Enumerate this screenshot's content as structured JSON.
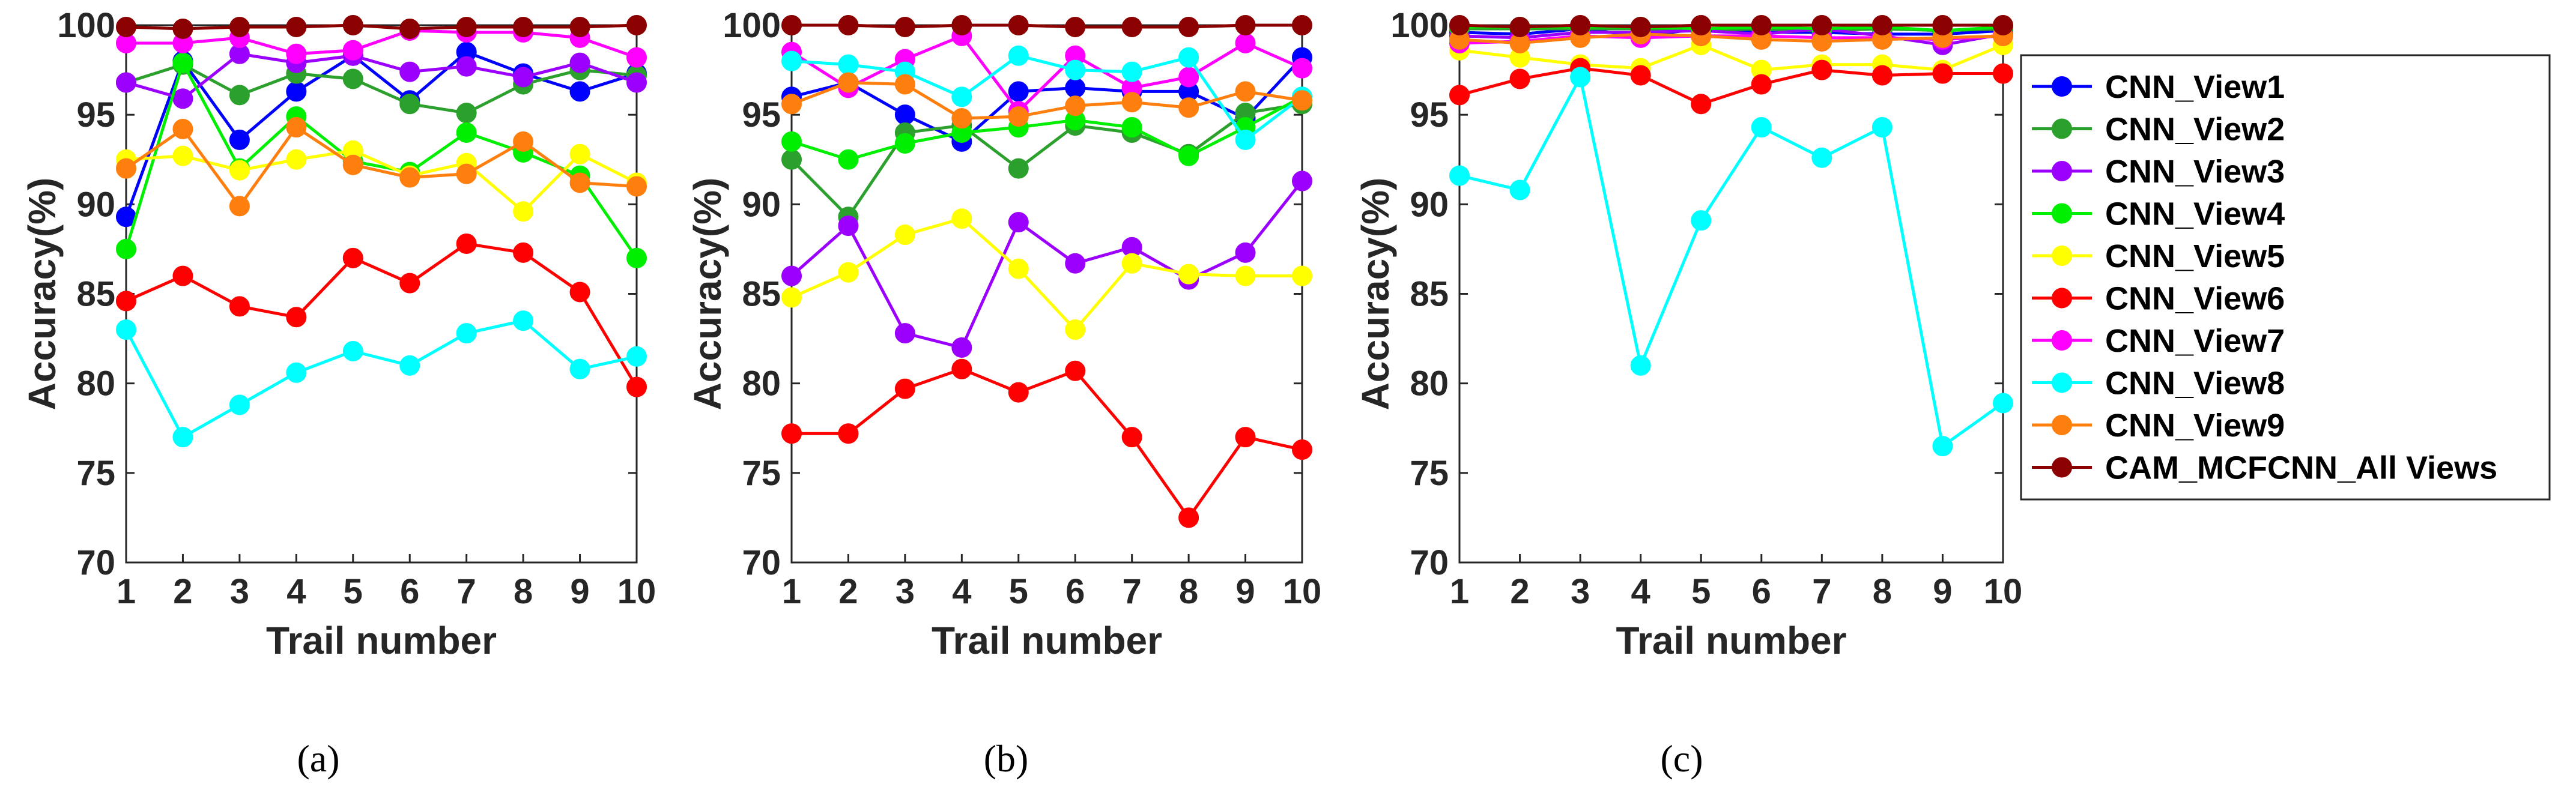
{
  "chart_data": [
    {
      "type": "line",
      "caption": "(a)",
      "xlabel": "Trail number",
      "ylabel": "Accuracy(%)",
      "x": [
        1,
        2,
        3,
        4,
        5,
        6,
        7,
        8,
        9,
        10
      ],
      "xticks": [
        "1",
        "2",
        "3",
        "4",
        "5",
        "6",
        "7",
        "8",
        "9",
        "10"
      ],
      "yticks": [
        "70",
        "75",
        "80",
        "85",
        "90",
        "95",
        "100"
      ],
      "ylim": [
        70,
        100
      ],
      "series": [
        {
          "name": "CNN_View1",
          "color": "#0000ff",
          "values": [
            89.3,
            98.0,
            93.6,
            96.3,
            98.3,
            95.8,
            98.5,
            97.3,
            96.3,
            97.3
          ]
        },
        {
          "name": "CNN_View2",
          "color": "#2ca02c",
          "values": [
            96.8,
            97.8,
            96.1,
            97.3,
            97.0,
            95.6,
            95.1,
            96.7,
            97.5,
            97.2
          ]
        },
        {
          "name": "CNN_View3",
          "color": "#9b00ff",
          "values": [
            96.8,
            95.9,
            98.4,
            97.9,
            98.3,
            97.4,
            97.7,
            97.1,
            97.9,
            96.8
          ]
        },
        {
          "name": "CNN_View4",
          "color": "#00ee00",
          "values": [
            87.5,
            97.9,
            92.0,
            94.9,
            92.4,
            91.8,
            94.0,
            92.9,
            91.6,
            87.0
          ]
        },
        {
          "name": "CNN_View5",
          "color": "#ffff00",
          "values": [
            92.5,
            92.7,
            91.9,
            92.5,
            93.0,
            91.6,
            92.3,
            89.6,
            92.8,
            91.2
          ]
        },
        {
          "name": "CNN_View6",
          "color": "#ff0000",
          "values": [
            84.6,
            86.0,
            84.3,
            83.7,
            87.0,
            85.6,
            87.8,
            87.3,
            85.1,
            79.8
          ]
        },
        {
          "name": "CNN_View7",
          "color": "#ff00ff",
          "values": [
            99.0,
            99.0,
            99.3,
            98.4,
            98.6,
            99.7,
            99.6,
            99.6,
            99.3,
            98.2
          ]
        },
        {
          "name": "CNN_View8",
          "color": "#00ffff",
          "values": [
            83.0,
            77.0,
            78.8,
            80.6,
            81.8,
            81.0,
            82.8,
            83.5,
            80.8,
            81.5
          ]
        },
        {
          "name": "CNN_View9",
          "color": "#ff7f0e",
          "values": [
            92.0,
            94.2,
            89.9,
            94.3,
            92.2,
            91.5,
            91.7,
            93.5,
            91.2,
            91.0
          ]
        },
        {
          "name": "CAM_MCFCNN_All Views",
          "color": "#8b0000",
          "values": [
            99.9,
            99.8,
            99.9,
            99.9,
            100.0,
            99.8,
            99.9,
            99.9,
            99.9,
            100.0
          ]
        }
      ]
    },
    {
      "type": "line",
      "caption": "(b)",
      "xlabel": "Trail number",
      "ylabel": "Accuracy(%)",
      "x": [
        1,
        2,
        3,
        4,
        5,
        6,
        7,
        8,
        9,
        10
      ],
      "xticks": [
        "1",
        "2",
        "3",
        "4",
        "5",
        "6",
        "7",
        "8",
        "9",
        "10"
      ],
      "yticks": [
        "70",
        "75",
        "80",
        "85",
        "90",
        "95",
        "100"
      ],
      "ylim": [
        70,
        100
      ],
      "series": [
        {
          "name": "CNN_View1",
          "color": "#0000ff",
          "values": [
            96.0,
            96.8,
            95.0,
            93.5,
            96.3,
            96.5,
            96.3,
            96.3,
            94.8,
            98.2
          ]
        },
        {
          "name": "CNN_View2",
          "color": "#2ca02c",
          "values": [
            92.5,
            89.3,
            94.0,
            94.4,
            92.0,
            94.4,
            94.0,
            92.8,
            95.1,
            95.6
          ]
        },
        {
          "name": "CNN_View3",
          "color": "#9b00ff",
          "values": [
            86.0,
            88.8,
            82.8,
            82.0,
            89.0,
            86.7,
            87.6,
            85.8,
            87.3,
            91.3
          ]
        },
        {
          "name": "CNN_View4",
          "color": "#00ee00",
          "values": [
            93.5,
            92.5,
            93.4,
            94.0,
            94.3,
            94.7,
            94.3,
            92.7,
            94.3,
            96.0
          ]
        },
        {
          "name": "CNN_View5",
          "color": "#ffff00",
          "values": [
            84.8,
            86.2,
            88.3,
            89.2,
            86.4,
            83.0,
            86.7,
            86.1,
            86.0,
            86.0
          ]
        },
        {
          "name": "CNN_View6",
          "color": "#ff0000",
          "values": [
            77.2,
            77.2,
            79.7,
            80.8,
            79.5,
            80.7,
            77.0,
            72.5,
            77.0,
            76.3
          ]
        },
        {
          "name": "CNN_View7",
          "color": "#ff00ff",
          "values": [
            98.5,
            96.5,
            98.1,
            99.4,
            95.2,
            98.3,
            96.5,
            97.1,
            99.0,
            97.6
          ]
        },
        {
          "name": "CNN_View8",
          "color": "#00ffff",
          "values": [
            98.0,
            97.8,
            97.4,
            96.0,
            98.3,
            97.5,
            97.4,
            98.2,
            93.6,
            96.0
          ]
        },
        {
          "name": "CNN_View9",
          "color": "#ff7f0e",
          "values": [
            95.6,
            96.8,
            96.7,
            94.8,
            94.9,
            95.5,
            95.7,
            95.4,
            96.3,
            95.8
          ]
        },
        {
          "name": "CAM_MCFCNN_All Views",
          "color": "#8b0000",
          "values": [
            100.0,
            100.0,
            99.9,
            100.0,
            100.0,
            99.9,
            99.9,
            99.9,
            100.0,
            100.0
          ]
        }
      ]
    },
    {
      "type": "line",
      "caption": "(c)",
      "xlabel": "Trail number",
      "ylabel": "Accuracy(%)",
      "x": [
        1,
        2,
        3,
        4,
        5,
        6,
        7,
        8,
        9,
        10
      ],
      "xticks": [
        "1",
        "2",
        "3",
        "4",
        "5",
        "6",
        "7",
        "8",
        "9",
        "10"
      ],
      "yticks": [
        "70",
        "75",
        "80",
        "85",
        "90",
        "95",
        "100"
      ],
      "ylim": [
        70,
        100
      ],
      "series": [
        {
          "name": "CNN_View1",
          "color": "#0000ff",
          "values": [
            99.6,
            99.5,
            99.8,
            99.4,
            99.8,
            99.6,
            99.6,
            99.5,
            99.5,
            99.7
          ]
        },
        {
          "name": "CNN_View2",
          "color": "#2ca02c",
          "values": [
            99.8,
            99.8,
            99.8,
            99.8,
            99.7,
            99.8,
            99.7,
            99.8,
            99.7,
            99.8
          ]
        },
        {
          "name": "CNN_View3",
          "color": "#9b00ff",
          "values": [
            99.4,
            99.3,
            99.6,
            99.6,
            99.7,
            99.5,
            99.8,
            99.4,
            98.9,
            99.5
          ]
        },
        {
          "name": "CNN_View4",
          "color": "#00ee00",
          "values": [
            99.9,
            99.9,
            99.9,
            99.9,
            99.8,
            99.9,
            99.8,
            99.9,
            99.7,
            99.9
          ]
        },
        {
          "name": "CNN_View5",
          "color": "#ffff00",
          "values": [
            98.6,
            98.2,
            97.8,
            97.6,
            98.9,
            97.5,
            97.8,
            97.8,
            97.5,
            98.9
          ]
        },
        {
          "name": "CNN_View6",
          "color": "#ff0000",
          "values": [
            96.1,
            97.0,
            97.6,
            97.2,
            95.6,
            96.7,
            97.5,
            97.2,
            97.3,
            97.3
          ]
        },
        {
          "name": "CNN_View7",
          "color": "#ff00ff",
          "values": [
            99.0,
            99.1,
            99.4,
            99.3,
            99.4,
            99.4,
            99.3,
            99.3,
            99.2,
            99.4
          ]
        },
        {
          "name": "CNN_View8",
          "color": "#00ffff",
          "values": [
            91.6,
            90.8,
            97.1,
            81.0,
            89.1,
            94.3,
            92.6,
            94.3,
            76.5,
            78.9
          ]
        },
        {
          "name": "CNN_View9",
          "color": "#ff7f0e",
          "values": [
            99.2,
            99.0,
            99.3,
            99.5,
            99.4,
            99.2,
            99.1,
            99.2,
            99.3,
            99.4
          ]
        },
        {
          "name": "CAM_MCFCNN_All Views",
          "color": "#8b0000",
          "values": [
            100.0,
            99.9,
            100.0,
            99.9,
            100.0,
            100.0,
            100.0,
            100.0,
            100.0,
            100.0
          ]
        }
      ]
    }
  ]
}
